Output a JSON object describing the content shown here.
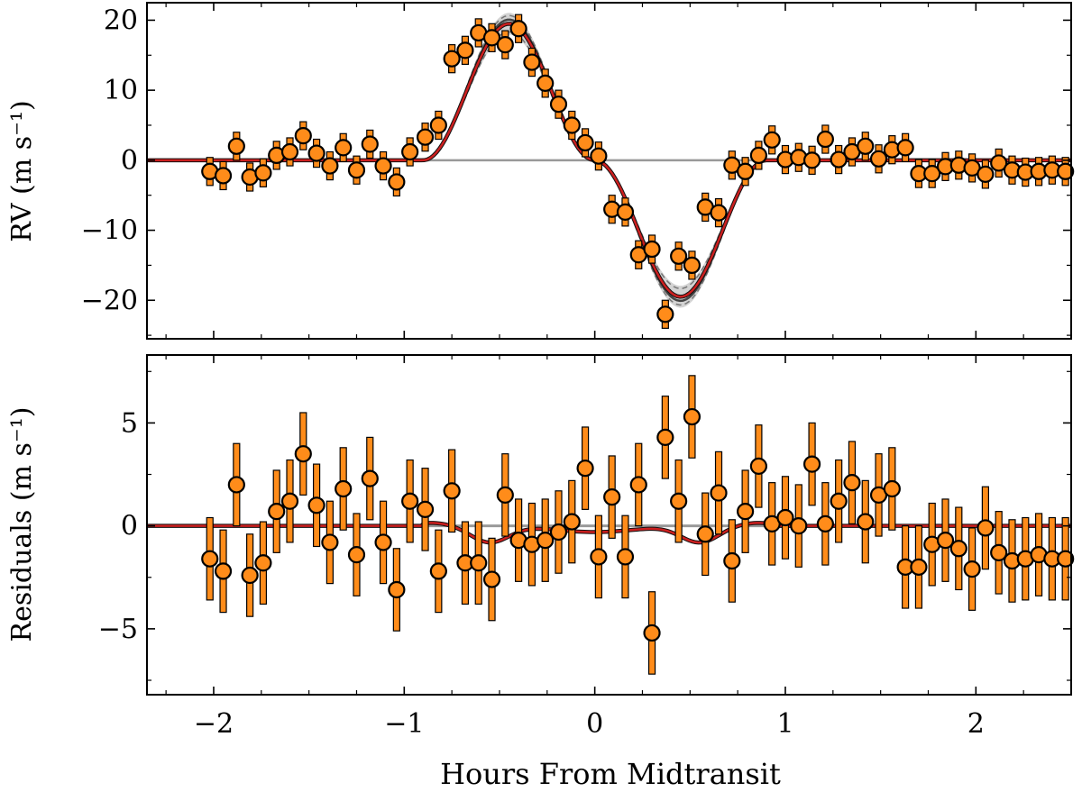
{
  "chart_data": [
    {
      "type": "scatter",
      "ylabel": "RV (m s⁻¹)",
      "xlim": [
        -2.35,
        2.5
      ],
      "ylim": [
        -25.5,
        22.5
      ],
      "xticks": [
        -2,
        -1,
        0,
        1,
        2
      ],
      "yticks": [
        20,
        10,
        0,
        -10,
        -20
      ],
      "ytick_labels": [
        "20",
        "10",
        "0",
        "−10",
        "−20"
      ],
      "grid": false,
      "series": [
        {
          "x": [
            -2.02,
            -1.95,
            -1.88,
            -1.81,
            -1.74,
            -1.67,
            -1.6,
            -1.53,
            -1.46,
            -1.39,
            -1.32,
            -1.25,
            -1.18,
            -1.11,
            -1.04,
            -0.97,
            -0.89,
            -0.82,
            -0.75,
            -0.68,
            -0.61,
            -0.54,
            -0.47,
            -0.4,
            -0.33,
            -0.26,
            -0.19,
            -0.12,
            -0.05,
            0.02,
            0.09,
            0.16,
            0.23,
            0.3,
            0.37,
            0.44,
            0.51,
            0.58,
            0.65,
            0.72,
            0.79,
            0.86,
            0.93,
            1.0,
            1.07,
            1.14,
            1.21,
            1.28,
            1.35,
            1.42,
            1.49,
            1.56,
            1.63,
            1.7,
            1.77,
            1.84,
            1.91,
            1.98,
            2.05,
            2.12,
            2.19,
            2.26,
            2.33,
            2.4,
            2.47
          ],
          "y": [
            -1.6,
            -2.2,
            2.0,
            -2.4,
            -1.8,
            0.7,
            1.2,
            3.5,
            1.0,
            -0.8,
            1.8,
            -1.4,
            2.3,
            -0.8,
            -3.1,
            1.2,
            3.3,
            5.0,
            14.5,
            15.7,
            18.2,
            17.5,
            16.5,
            18.8,
            14.0,
            11.0,
            8.0,
            5.0,
            2.5,
            0.6,
            -7.0,
            -7.4,
            -13.5,
            -12.7,
            -22.0,
            -13.7,
            -15.0,
            -6.7,
            -7.5,
            -0.7,
            -1.6,
            0.7,
            2.9,
            0.1,
            0.4,
            0.0,
            3.0,
            0.1,
            1.2,
            2.0,
            0.2,
            1.5,
            1.8,
            -1.9,
            -1.9,
            -0.9,
            -0.7,
            -1.1,
            -2.0,
            -0.4,
            -1.4,
            -1.7,
            -1.6,
            -1.4,
            -1.6
          ],
          "yerr": 2.0
        }
      ]
    },
    {
      "type": "scatter",
      "xlabel": "Hours From Midtransit",
      "ylabel": "Residuals (m s⁻¹)",
      "xlim": [
        -2.35,
        2.5
      ],
      "ylim": [
        -8.2,
        8.3
      ],
      "xticks": [
        -2,
        -1,
        0,
        1,
        2
      ],
      "xtick_labels": [
        "−2",
        "−1",
        "0",
        "1",
        "2"
      ],
      "yticks": [
        5,
        0,
        -5
      ],
      "ytick_labels": [
        "5",
        "0",
        "−5"
      ],
      "grid": false,
      "series": [
        {
          "x": [
            -2.02,
            -1.95,
            -1.88,
            -1.81,
            -1.74,
            -1.67,
            -1.6,
            -1.53,
            -1.46,
            -1.39,
            -1.32,
            -1.25,
            -1.18,
            -1.11,
            -1.04,
            -0.97,
            -0.89,
            -0.82,
            -0.75,
            -0.68,
            -0.61,
            -0.54,
            -0.47,
            -0.4,
            -0.33,
            -0.26,
            -0.19,
            -0.12,
            -0.05,
            0.02,
            0.09,
            0.16,
            0.23,
            0.3,
            0.37,
            0.44,
            0.51,
            0.58,
            0.65,
            0.72,
            0.79,
            0.86,
            0.93,
            1.0,
            1.07,
            1.14,
            1.21,
            1.28,
            1.35,
            1.42,
            1.49,
            1.56,
            1.63,
            1.7,
            1.77,
            1.84,
            1.91,
            1.98,
            2.05,
            2.12,
            2.19,
            2.26,
            2.33,
            2.4,
            2.47
          ],
          "y": [
            -1.6,
            -2.2,
            2.0,
            -2.4,
            -1.8,
            0.7,
            1.2,
            3.5,
            1.0,
            -0.8,
            1.8,
            -1.4,
            2.3,
            -0.8,
            -3.1,
            1.2,
            0.8,
            -2.2,
            1.7,
            -1.8,
            -1.8,
            -2.6,
            1.5,
            -0.7,
            -0.9,
            -0.7,
            -0.3,
            0.2,
            2.8,
            -1.5,
            1.4,
            -1.5,
            2.0,
            -5.2,
            4.3,
            1.2,
            5.3,
            -0.4,
            1.6,
            -1.7,
            0.7,
            2.9,
            0.1,
            0.4,
            0.0,
            3.0,
            0.1,
            1.2,
            2.1,
            0.2,
            1.5,
            1.8,
            -2.0,
            -2.0,
            -0.9,
            -0.7,
            -1.1,
            -2.1,
            -0.1,
            -1.3,
            -1.7,
            -1.6,
            -1.4,
            -1.6,
            -1.6
          ],
          "yerr": 2.0
        }
      ]
    }
  ],
  "colors": {
    "marker_face": "#ff8c1a",
    "marker_edge": "#000000",
    "model": "#cc1f1f",
    "model_band": "#c8c8c8",
    "zero_line": "#999999"
  }
}
